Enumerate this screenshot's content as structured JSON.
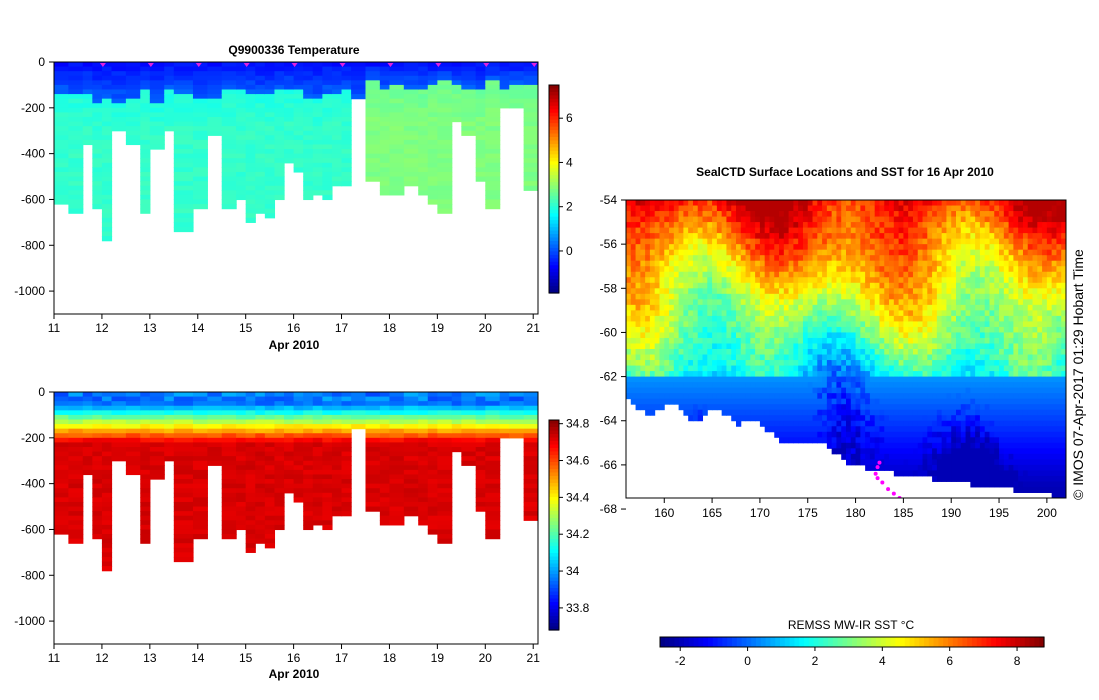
{
  "copyright": "© IMOS 07-Apr-2017 01:29 Hobart Time",
  "chart_data": [
    {
      "id": "temp",
      "type": "heatmap",
      "title": "Q9900336  Temperature",
      "xlabel": "Apr 2010",
      "ylabel": "",
      "xlim": [
        11,
        21.1
      ],
      "ylim": [
        -1100,
        0
      ],
      "xticks": [
        11,
        12,
        13,
        14,
        15,
        16,
        17,
        18,
        19,
        20,
        21
      ],
      "yticks": [
        0,
        -200,
        -400,
        -600,
        -800,
        -1000
      ],
      "colorbar": {
        "min": -1.9,
        "max": 7.5,
        "ticks": [
          0,
          2,
          4,
          6
        ],
        "tick_labels": [
          "0",
          "2",
          "4",
          "6"
        ]
      },
      "surface_markers": [
        12,
        13,
        14,
        15,
        16,
        17,
        18,
        19,
        20,
        21
      ],
      "profile_times": [
        11.0,
        11.3,
        11.6,
        11.8,
        12.0,
        12.2,
        12.5,
        12.8,
        13.0,
        13.3,
        13.5,
        13.9,
        14.2,
        14.5,
        14.8,
        15.0,
        15.2,
        15.4,
        15.6,
        15.8,
        16.0,
        16.2,
        16.4,
        16.6,
        16.8,
        17.0,
        17.2,
        17.5,
        17.8,
        18.0,
        18.3,
        18.6,
        18.8,
        19.0,
        19.3,
        19.5,
        19.8,
        20.0,
        20.3,
        20.5,
        20.8,
        21.1
      ],
      "profile_max_depth": [
        -610,
        -660,
        -350,
        -640,
        -770,
        -290,
        -350,
        -660,
        -380,
        -290,
        -730,
        -640,
        -320,
        -640,
        -590,
        -690,
        -650,
        -670,
        -600,
        -440,
        -470,
        -590,
        -580,
        -590,
        -540,
        -540,
        -150,
        -520,
        -570,
        -570,
        -540,
        -570,
        -610,
        -660,
        -260,
        -310,
        -510,
        -630,
        -200,
        -200,
        -560,
        -560
      ],
      "surface_value": -0.8,
      "deep_value": 1.9,
      "mixed_layer_depth": 150
    },
    {
      "id": "sal",
      "type": "heatmap",
      "title": "",
      "xlabel": "Apr 2010",
      "ylabel": "",
      "xlim": [
        11,
        21.1
      ],
      "ylim": [
        -1100,
        0
      ],
      "xticks": [
        11,
        12,
        13,
        14,
        15,
        16,
        17,
        18,
        19,
        20,
        21
      ],
      "yticks": [
        0,
        -200,
        -400,
        -600,
        -800,
        -1000
      ],
      "colorbar": {
        "min": 33.68,
        "max": 34.82,
        "ticks": [
          34.8,
          34.6,
          34.4,
          34.2,
          34.0,
          33.8
        ],
        "tick_labels": [
          "34.8",
          "34.6",
          "34.4",
          "34.2",
          "34",
          "33.8"
        ]
      },
      "profile_times": [
        11.0,
        11.3,
        11.6,
        11.8,
        12.0,
        12.2,
        12.5,
        12.8,
        13.0,
        13.3,
        13.5,
        13.9,
        14.2,
        14.5,
        14.8,
        15.0,
        15.2,
        15.4,
        15.6,
        15.8,
        16.0,
        16.2,
        16.4,
        16.6,
        16.8,
        17.0,
        17.2,
        17.5,
        17.8,
        18.0,
        18.3,
        18.6,
        18.8,
        19.0,
        19.3,
        19.5,
        19.8,
        20.0,
        20.3,
        20.5,
        20.8,
        21.1
      ],
      "profile_max_depth": [
        -610,
        -660,
        -350,
        -640,
        -770,
        -290,
        -350,
        -660,
        -380,
        -290,
        -730,
        -640,
        -320,
        -640,
        -590,
        -690,
        -650,
        -670,
        -600,
        -440,
        -470,
        -590,
        -580,
        -590,
        -540,
        -540,
        -150,
        -520,
        -570,
        -570,
        -540,
        -570,
        -610,
        -660,
        -260,
        -310,
        -510,
        -630,
        -200,
        -200,
        -560,
        -560
      ],
      "surface_value": 33.9,
      "deep_value": 34.72
    },
    {
      "id": "map",
      "type": "heatmap",
      "title": "SealCTD Surface Locations and SST for 16 Apr 2010",
      "xlabel": "",
      "ylabel": "",
      "xlim": [
        156,
        202
      ],
      "ylim": [
        -67.5,
        -54
      ],
      "xticks": [
        160,
        165,
        170,
        175,
        180,
        185,
        190,
        195,
        200
      ],
      "yticks": [
        -54,
        -56,
        -58,
        -60,
        -62,
        -64,
        -66,
        -68
      ],
      "colorbar": {
        "label": "REMSS MW-IR SST °C",
        "min": -2.6,
        "max": 8.8,
        "ticks": [
          -2,
          0,
          2,
          4,
          6,
          8
        ],
        "tick_labels": [
          "-2",
          "0",
          "2",
          "4",
          "6",
          "8"
        ]
      },
      "seal_track": [
        [
          182.5,
          -65.9
        ],
        [
          182.3,
          -66.1
        ],
        [
          182.1,
          -66.4
        ],
        [
          182.3,
          -66.6
        ],
        [
          182.8,
          -66.8
        ],
        [
          183.4,
          -67.1
        ],
        [
          184.0,
          -67.3
        ],
        [
          184.6,
          -67.5
        ],
        [
          185.2,
          -67.7
        ]
      ],
      "sst_field": "SST decreases from ~7°C in the north to ~-1.5°C near the Antarctic coast"
    }
  ]
}
